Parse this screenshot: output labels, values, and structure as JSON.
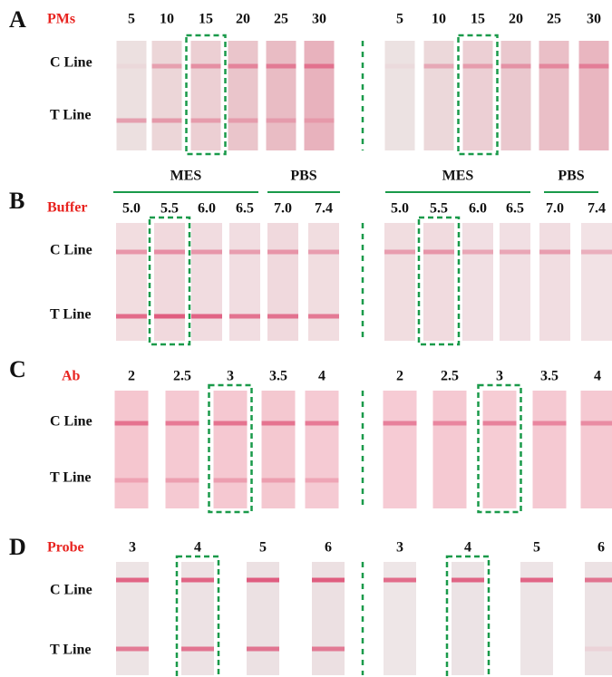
{
  "panels": [
    {
      "letter": "A",
      "parameter": "PMs",
      "line_labels": [
        "C Line",
        "T Line"
      ],
      "left": {
        "values": [
          "5",
          "10",
          "15",
          "20",
          "25",
          "30"
        ]
      },
      "right": {
        "values": [
          "5",
          "10",
          "15",
          "20",
          "25",
          "30"
        ]
      }
    },
    {
      "letter": "B",
      "parameter": "Buffer",
      "line_labels": [
        "C Line",
        "T Line"
      ],
      "left": {
        "groups": [
          "MES",
          "PBS"
        ],
        "values": [
          "5.0",
          "5.5",
          "6.0",
          "6.5",
          "7.0",
          "7.4"
        ]
      },
      "right": {
        "groups": [
          "MES",
          "PBS"
        ],
        "values": [
          "5.0",
          "5.5",
          "6.0",
          "6.5",
          "7.0",
          "7.4"
        ]
      }
    },
    {
      "letter": "C",
      "parameter": "Ab",
      "line_labels": [
        "C Line",
        "T Line"
      ],
      "left": {
        "values": [
          "2",
          "2.5",
          "3",
          "3.5",
          "4"
        ]
      },
      "right": {
        "values": [
          "2",
          "2.5",
          "3",
          "3.5",
          "4"
        ]
      }
    },
    {
      "letter": "D",
      "parameter": "Probe",
      "line_labels": [
        "C Line",
        "T Line"
      ],
      "left": {
        "values": [
          "3",
          "4",
          "5",
          "6"
        ]
      },
      "right": {
        "values": [
          "3",
          "4",
          "5",
          "6"
        ]
      }
    }
  ]
}
